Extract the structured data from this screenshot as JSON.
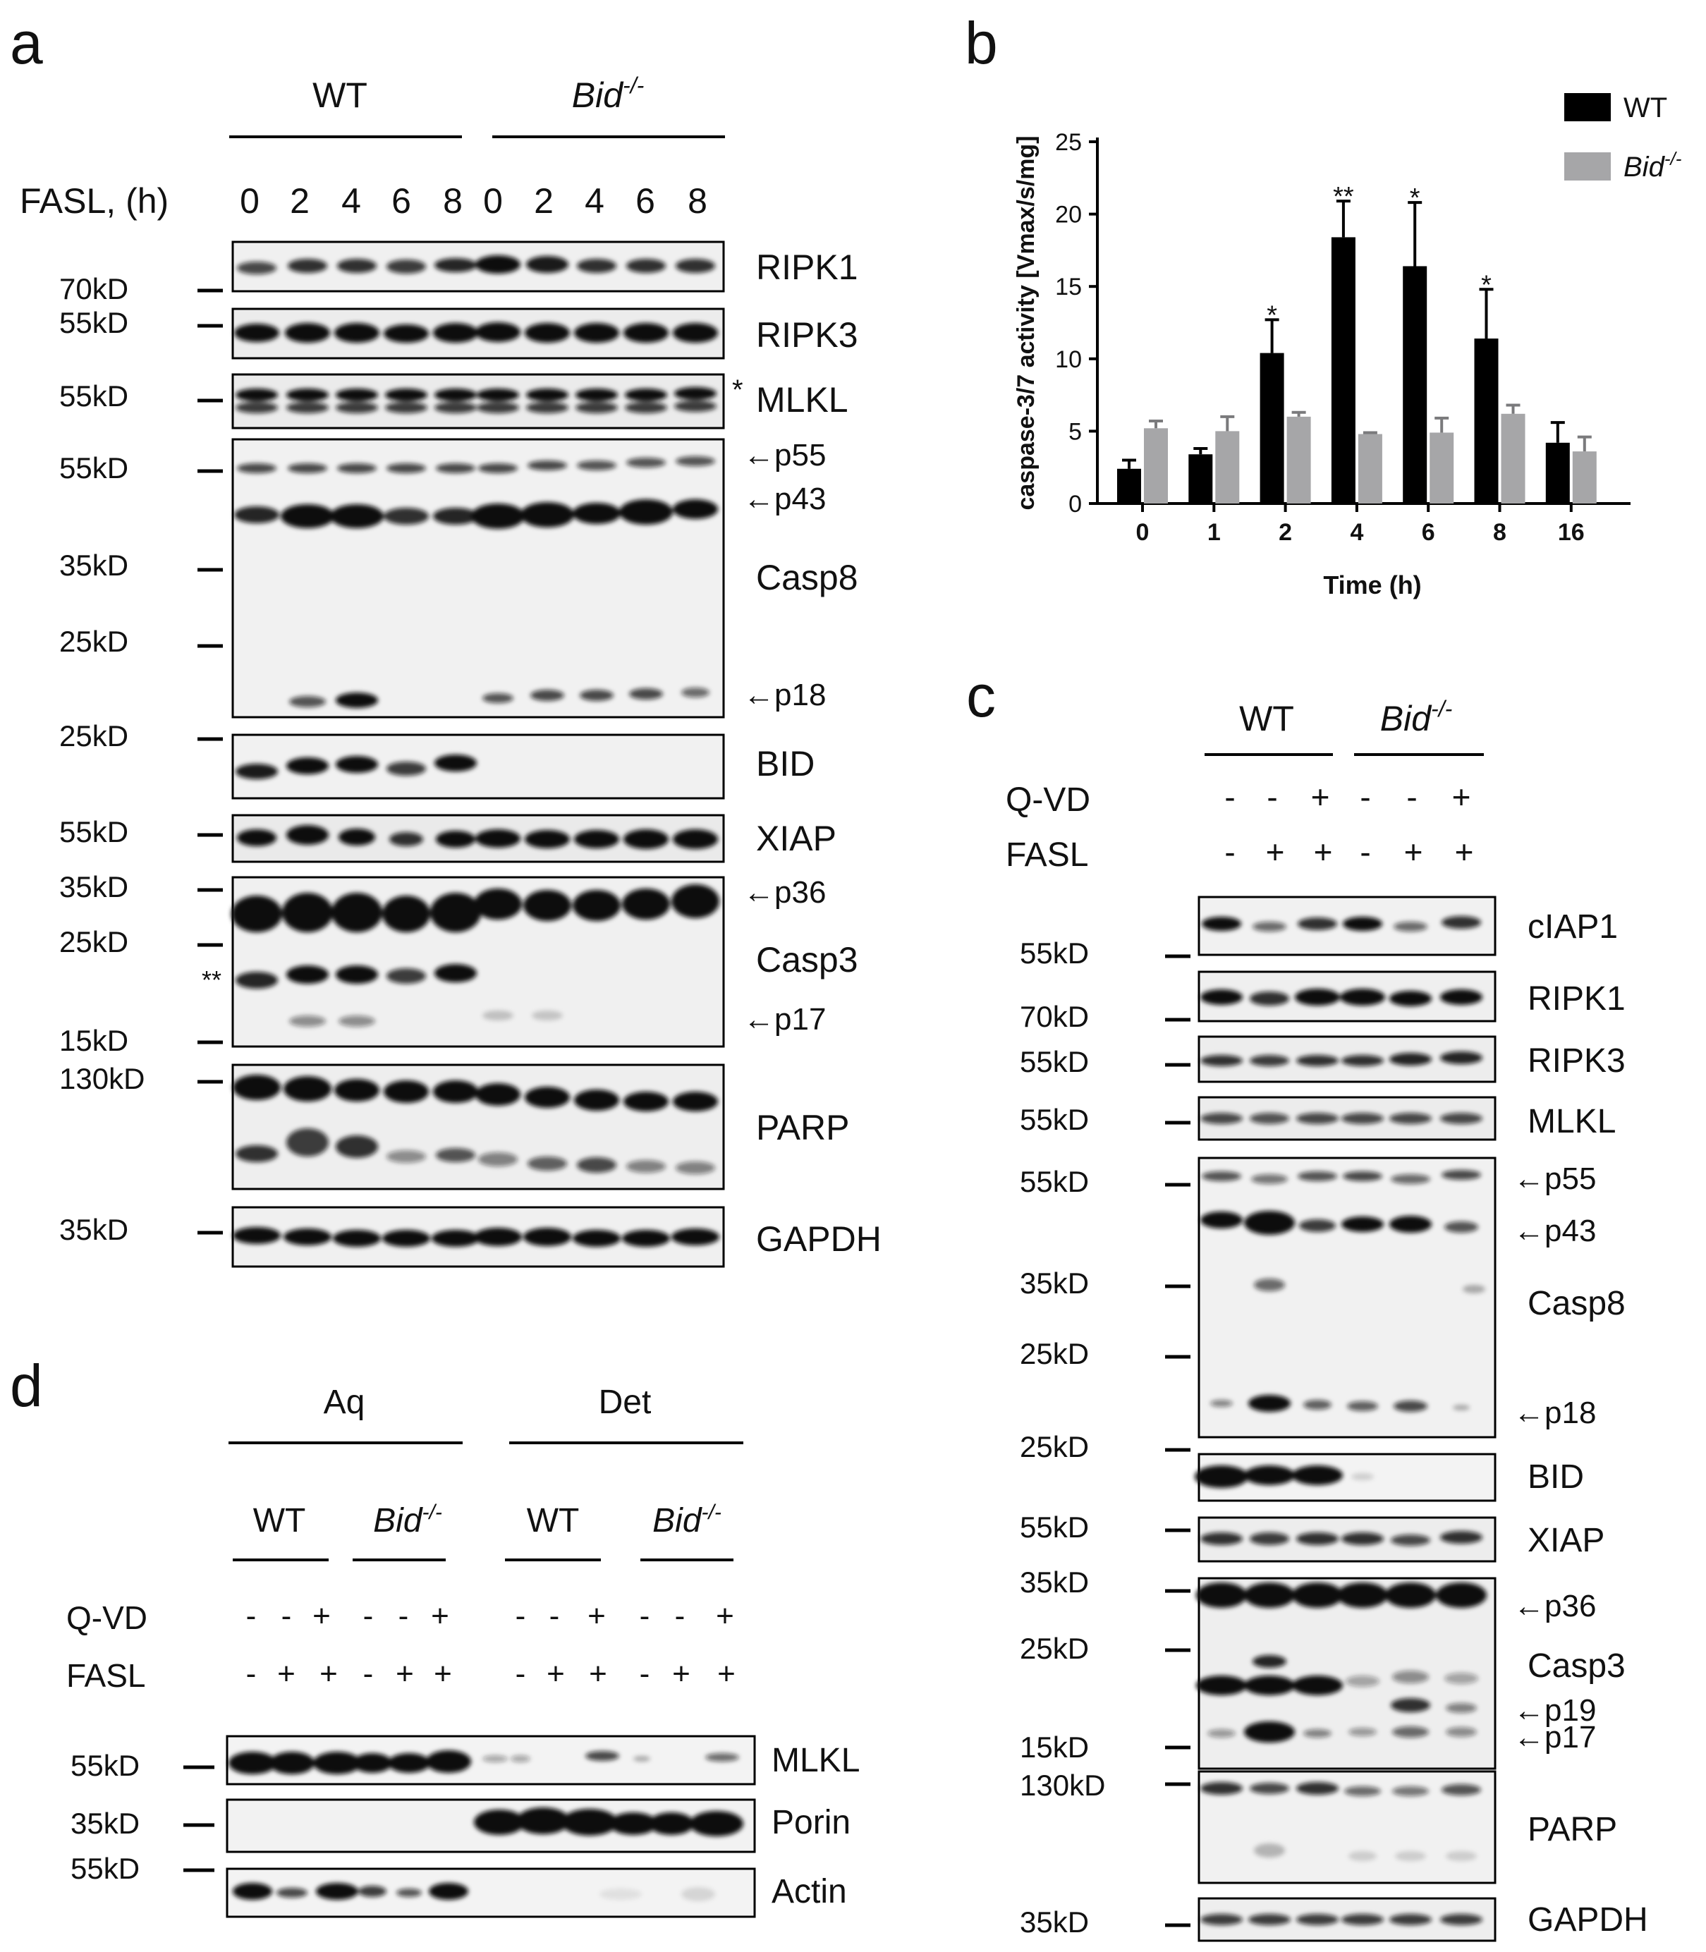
{
  "panels": {
    "a": {
      "letter": "a",
      "groups": [
        "WT",
        "Bid"
      ],
      "genotype_superscript": "-/-",
      "treatment_label": "FASL, (h)",
      "timepoints": [
        "0",
        "2",
        "4",
        "6",
        "8",
        "0",
        "2",
        "4",
        "6",
        "8"
      ],
      "markers": [
        "70kD",
        "55kD",
        "55kD",
        "55kD",
        "35kD",
        "25kD",
        "25kD",
        "55kD",
        "35kD",
        "25kD",
        "15kD",
        "130kD",
        "35kD"
      ],
      "blot_labels": [
        "RIPK1",
        "RIPK3",
        "MLKL",
        "Casp8",
        "BID",
        "XIAP",
        "Casp3",
        "PARP",
        "GAPDH"
      ],
      "band_arrows": [
        "←p55",
        "←p43",
        "←p18",
        "←p36",
        "←p17"
      ],
      "asterisks": [
        "*",
        "**"
      ]
    },
    "b": {
      "letter": "b",
      "significance": [
        "*",
        "**",
        "*",
        "*"
      ]
    },
    "c": {
      "letter": "c",
      "groups": [
        "WT",
        "Bid"
      ],
      "genotype_superscript": "-/-",
      "row_labels": [
        "Q-VD",
        "FASL"
      ],
      "qvd_signs": [
        "-",
        "-",
        "+",
        "-",
        "-",
        "+"
      ],
      "fasl_signs": [
        "-",
        "+",
        "+",
        "-",
        "+",
        "+"
      ],
      "markers": [
        "55kD",
        "70kD",
        "55kD",
        "55kD",
        "55kD",
        "35kD",
        "25kD",
        "25kD",
        "55kD",
        "35kD",
        "25kD",
        "15kD",
        "130kD",
        "35kD"
      ],
      "blot_labels": [
        "cIAP1",
        "RIPK1",
        "RIPK3",
        "MLKL",
        "Casp8",
        "BID",
        "XIAP",
        "Casp3",
        "PARP",
        "GAPDH"
      ],
      "band_arrows": [
        "←p55",
        "←p43",
        "←p18",
        "←p36",
        "←p19",
        "←p17"
      ]
    },
    "d": {
      "letter": "d",
      "fractions": [
        "Aq",
        "Det"
      ],
      "groups": [
        "WT",
        "Bid",
        "WT",
        "Bid"
      ],
      "genotype_superscript": "-/-",
      "row_labels": [
        "Q-VD",
        "FASL"
      ],
      "qvd_signs": [
        "-",
        "-",
        "+",
        "-",
        "-",
        "+",
        "-",
        "-",
        "+",
        "-",
        "-",
        "+"
      ],
      "fasl_signs": [
        "-",
        "+",
        "+",
        "-",
        "+",
        "+",
        "-",
        "+",
        "+",
        "-",
        "+",
        "+"
      ],
      "markers": [
        "55kD",
        "35kD",
        "55kD"
      ],
      "blot_labels": [
        "MLKL",
        "Porin",
        "Actin"
      ]
    }
  },
  "chart_data": {
    "type": "bar",
    "title": "",
    "xlabel": "Time (h)",
    "ylabel": "caspase-3/7 activity [Vmax/s/mg]",
    "categories": [
      "0",
      "1",
      "2",
      "4",
      "6",
      "8",
      "16"
    ],
    "ylim": [
      0,
      25
    ],
    "yticks": [
      "0",
      "5",
      "10",
      "15",
      "20",
      "25"
    ],
    "legend_position": "top-right",
    "series": [
      {
        "name": "WT",
        "color": "#000000",
        "values": [
          2.4,
          3.4,
          10.4,
          18.4,
          16.4,
          11.4,
          4.2
        ],
        "errors": [
          0.6,
          0.4,
          2.3,
          2.5,
          4.4,
          3.4,
          1.4
        ]
      },
      {
        "name": "Bid",
        "superscript": "-/-",
        "color": "#a6a6a8",
        "values": [
          5.2,
          5.0,
          6.0,
          4.8,
          4.9,
          6.2,
          3.6
        ],
        "errors": [
          0.5,
          1.0,
          0.3,
          0.1,
          1.0,
          0.6,
          1.0
        ]
      }
    ],
    "significance": [
      "",
      "",
      "*",
      "**",
      "*",
      "*",
      ""
    ]
  }
}
